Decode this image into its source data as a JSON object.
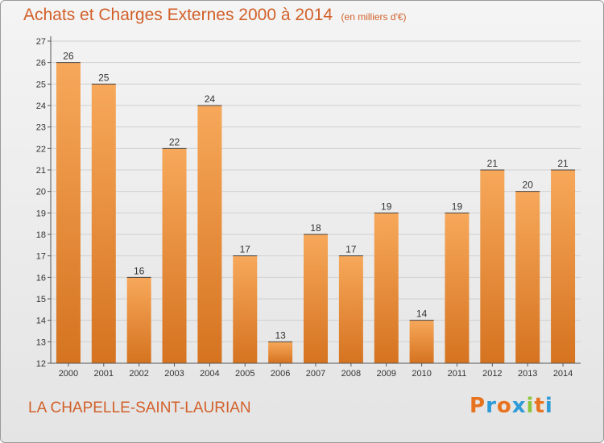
{
  "colors": {
    "bar_top": "#f7a85a",
    "bar_bottom": "#d57320",
    "accent": "#d2602a",
    "grid": "#d0d0d0",
    "axis": "#555555"
  },
  "chart_data": {
    "type": "bar",
    "title": "Achats et Charges Externes 2000 à 2014",
    "subtitle": "(en milliers d'€)",
    "categories": [
      "2000",
      "2001",
      "2002",
      "2003",
      "2004",
      "2005",
      "2006",
      "2007",
      "2008",
      "2009",
      "2010",
      "2011",
      "2012",
      "2013",
      "2014"
    ],
    "values": [
      26,
      25,
      16,
      22,
      24,
      17,
      13,
      18,
      17,
      19,
      14,
      19,
      21,
      20,
      21
    ],
    "ylim": [
      12,
      27
    ],
    "yticks": [
      12,
      13,
      14,
      15,
      16,
      17,
      18,
      19,
      20,
      21,
      22,
      23,
      24,
      25,
      26,
      27
    ],
    "grid": true,
    "data_labels": true
  },
  "place_name": "LA CHAPELLE-SAINT-LAURIAN",
  "logo": {
    "text": "Proxiti",
    "letter_colors": [
      "#e8731f",
      "#2e9ad6",
      "#e8731f",
      "#2e9ad6",
      "#8cc63f",
      "#e8731f",
      "#2e9ad6"
    ]
  }
}
